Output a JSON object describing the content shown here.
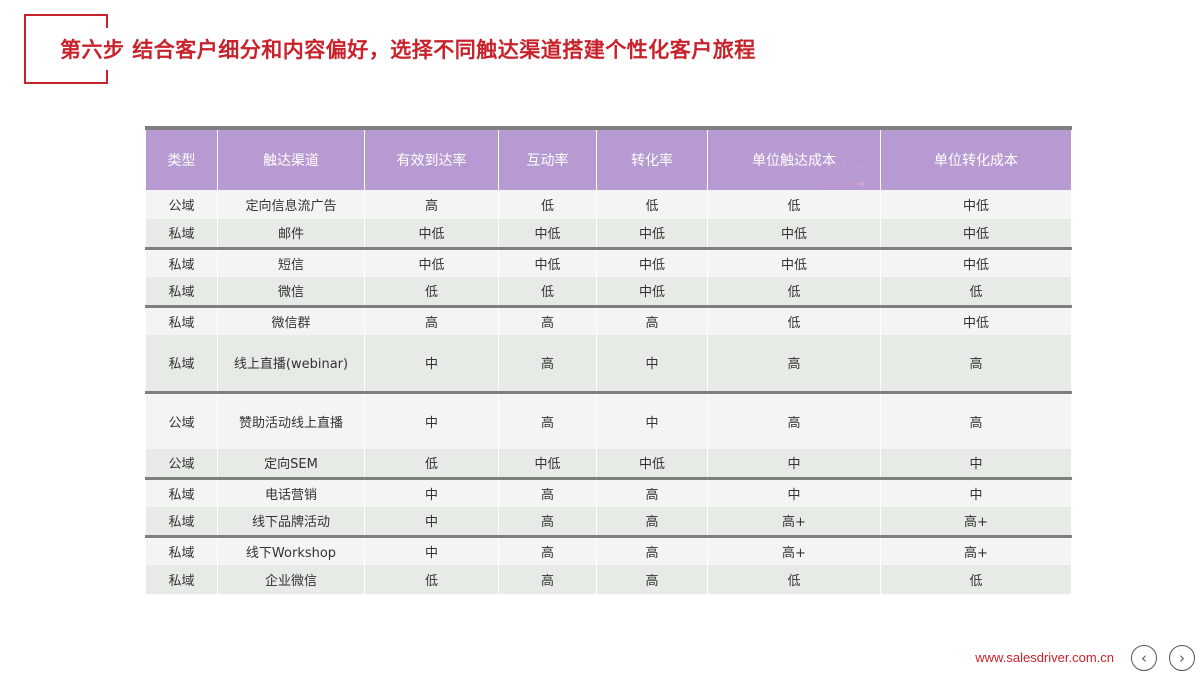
{
  "title": "第六步 结合客户细分和内容偏好，选择不同触达渠道搭建个性化客户旅程",
  "table": {
    "headers": [
      "类型",
      "触达渠道",
      "有效到达率",
      "互动率",
      "转化率",
      "单位触达成本",
      "单位转化成本"
    ],
    "rows": [
      [
        "公域",
        "定向信息流广告",
        "高",
        "低",
        "低",
        "低",
        "中低"
      ],
      [
        "私域",
        "邮件",
        "中低",
        "中低",
        "中低",
        "中低",
        "中低"
      ],
      [
        "私域",
        "短信",
        "中低",
        "中低",
        "中低",
        "中低",
        "中低"
      ],
      [
        "私域",
        "微信",
        "低",
        "低",
        "中低",
        "低",
        "低"
      ],
      [
        "私域",
        "微信群",
        "高",
        "高",
        "高",
        "低",
        "中低"
      ],
      [
        "私域",
        "线上直播(webinar)",
        "中",
        "高",
        "中",
        "高",
        "高"
      ],
      [
        "公域",
        "赞助活动线上直播",
        "中",
        "高",
        "中",
        "高",
        "高"
      ],
      [
        "公域",
        "定向SEM",
        "低",
        "中低",
        "中低",
        "中",
        "中"
      ],
      [
        "私域",
        "电话营销",
        "中",
        "高",
        "高",
        "中",
        "中"
      ],
      [
        "私域",
        "线下品牌活动",
        "中",
        "高",
        "高",
        "高+",
        "高+"
      ],
      [
        "私域",
        "线下Workshop",
        "中",
        "高",
        "高",
        "高+",
        "高+"
      ],
      [
        "私域",
        "企业微信",
        "低",
        "高",
        "高",
        "低",
        "低"
      ]
    ]
  },
  "footer": {
    "site": "www.salesdriver.com.cn",
    "prev_icon": "‹",
    "next_icon": "›"
  },
  "colors": {
    "accent": "#c8232c",
    "header_bg": "#b79ad2",
    "row_light": "#f4f4f4",
    "row_green": "#e6ebe6"
  }
}
